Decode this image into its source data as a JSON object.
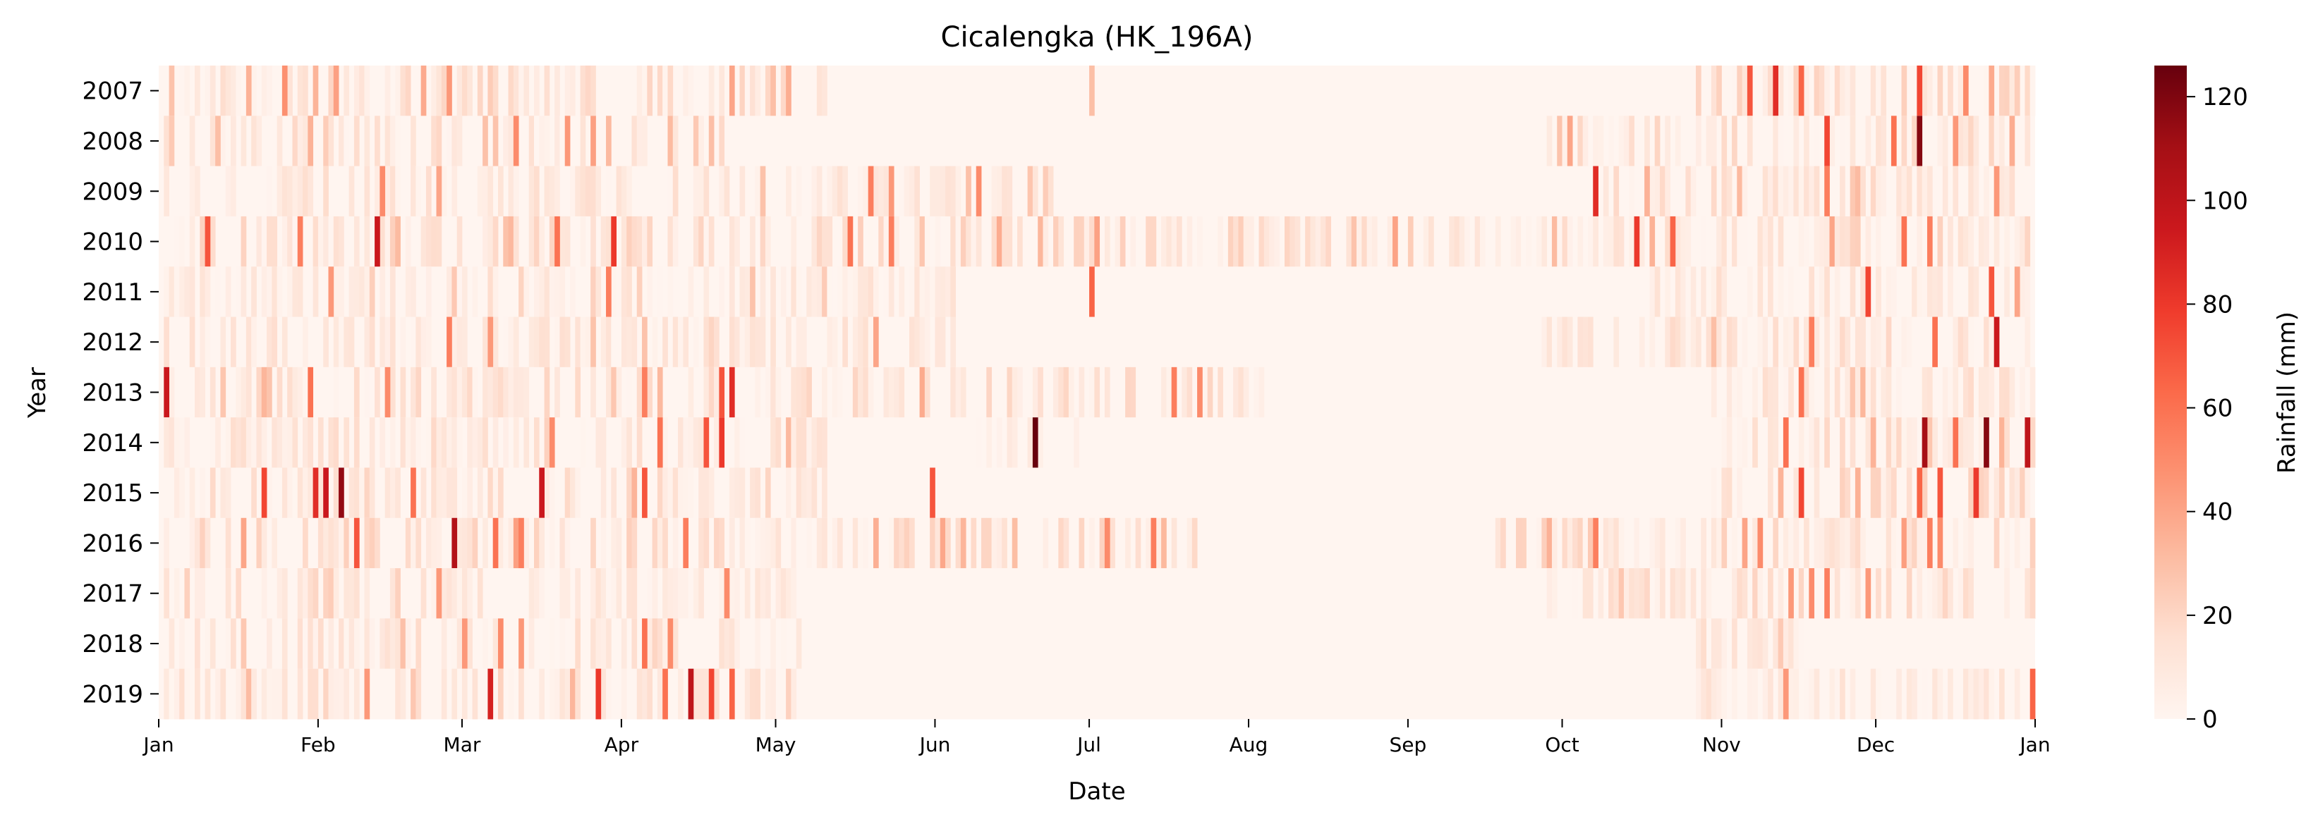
{
  "chart_data": {
    "type": "heatmap",
    "title": "Cicalengka (HK_196A)",
    "xlabel": "Date",
    "ylabel": "Year",
    "colorbar_label": "Rainfall (mm)",
    "colormap": "Reds",
    "color_stops": [
      "#fff5f0",
      "#fee0d2",
      "#fcbba1",
      "#fc9272",
      "#fb6a4a",
      "#ef3b2c",
      "#cb181d",
      "#a50f15",
      "#67000d"
    ],
    "value_range": [
      0,
      126
    ],
    "colorbar_ticks": [
      0,
      20,
      40,
      60,
      80,
      100,
      120
    ],
    "years": [
      "2007",
      "2008",
      "2009",
      "2010",
      "2011",
      "2012",
      "2013",
      "2014",
      "2015",
      "2016",
      "2017",
      "2018",
      "2019"
    ],
    "x_ticks": [
      {
        "label": "Jan",
        "day": 1
      },
      {
        "label": "Feb",
        "day": 32
      },
      {
        "label": "Mar",
        "day": 60
      },
      {
        "label": "Apr",
        "day": 91
      },
      {
        "label": "May",
        "day": 121
      },
      {
        "label": "Jun",
        "day": 152
      },
      {
        "label": "Jul",
        "day": 182
      },
      {
        "label": "Aug",
        "day": 213
      },
      {
        "label": "Sep",
        "day": 244
      },
      {
        "label": "Oct",
        "day": 274
      },
      {
        "label": "Nov",
        "day": 305
      },
      {
        "label": "Dec",
        "day": 335
      },
      {
        "label": "Jan",
        "day": 366
      }
    ],
    "x_range_days": [
      1,
      366
    ],
    "peaks": [
      {
        "year": "2007",
        "day": 18,
        "value": 35
      },
      {
        "year": "2007",
        "day": 25,
        "value": 48
      },
      {
        "year": "2007",
        "day": 35,
        "value": 42
      },
      {
        "year": "2007",
        "day": 52,
        "value": 38
      },
      {
        "year": "2007",
        "day": 57,
        "value": 45
      },
      {
        "year": "2007",
        "day": 112,
        "value": 40
      },
      {
        "year": "2007",
        "day": 120,
        "value": 30
      },
      {
        "year": "2007",
        "day": 182,
        "value": 30
      },
      {
        "year": "2007",
        "day": 310,
        "value": 70
      },
      {
        "year": "2007",
        "day": 315,
        "value": 85
      },
      {
        "year": "2007",
        "day": 320,
        "value": 65
      },
      {
        "year": "2007",
        "day": 343,
        "value": 75
      },
      {
        "year": "2007",
        "day": 352,
        "value": 50
      },
      {
        "year": "2008",
        "day": 12,
        "value": 30
      },
      {
        "year": "2008",
        "day": 30,
        "value": 35
      },
      {
        "year": "2008",
        "day": 70,
        "value": 50
      },
      {
        "year": "2008",
        "day": 80,
        "value": 45
      },
      {
        "year": "2008",
        "day": 85,
        "value": 42
      },
      {
        "year": "2008",
        "day": 275,
        "value": 40
      },
      {
        "year": "2008",
        "day": 325,
        "value": 75
      },
      {
        "year": "2008",
        "day": 338,
        "value": 60
      },
      {
        "year": "2008",
        "day": 343,
        "value": 118
      },
      {
        "year": "2008",
        "day": 350,
        "value": 45
      },
      {
        "year": "2009",
        "day": 44,
        "value": 50
      },
      {
        "year": "2009",
        "day": 55,
        "value": 40
      },
      {
        "year": "2009",
        "day": 139,
        "value": 55
      },
      {
        "year": "2009",
        "day": 143,
        "value": 45
      },
      {
        "year": "2009",
        "day": 160,
        "value": 50
      },
      {
        "year": "2009",
        "day": 280,
        "value": 85
      },
      {
        "year": "2009",
        "day": 290,
        "value": 35
      },
      {
        "year": "2009",
        "day": 325,
        "value": 55
      },
      {
        "year": "2009",
        "day": 358,
        "value": 45
      },
      {
        "year": "2010",
        "day": 10,
        "value": 70
      },
      {
        "year": "2010",
        "day": 28,
        "value": 55
      },
      {
        "year": "2010",
        "day": 43,
        "value": 95
      },
      {
        "year": "2010",
        "day": 78,
        "value": 60
      },
      {
        "year": "2010",
        "day": 89,
        "value": 80
      },
      {
        "year": "2010",
        "day": 135,
        "value": 60
      },
      {
        "year": "2010",
        "day": 143,
        "value": 55
      },
      {
        "year": "2010",
        "day": 288,
        "value": 80
      },
      {
        "year": "2010",
        "day": 295,
        "value": 65
      },
      {
        "year": "2010",
        "day": 340,
        "value": 60
      },
      {
        "year": "2010",
        "day": 345,
        "value": 55
      },
      {
        "year": "2011",
        "day": 34,
        "value": 45
      },
      {
        "year": "2011",
        "day": 88,
        "value": 55
      },
      {
        "year": "2011",
        "day": 182,
        "value": 65
      },
      {
        "year": "2011",
        "day": 333,
        "value": 75
      },
      {
        "year": "2011",
        "day": 357,
        "value": 70
      },
      {
        "year": "2011",
        "day": 362,
        "value": 40
      },
      {
        "year": "2012",
        "day": 57,
        "value": 55
      },
      {
        "year": "2012",
        "day": 65,
        "value": 45
      },
      {
        "year": "2012",
        "day": 140,
        "value": 40
      },
      {
        "year": "2012",
        "day": 322,
        "value": 55
      },
      {
        "year": "2012",
        "day": 346,
        "value": 60
      },
      {
        "year": "2012",
        "day": 358,
        "value": 95
      },
      {
        "year": "2013",
        "day": 2,
        "value": 95
      },
      {
        "year": "2013",
        "day": 30,
        "value": 60
      },
      {
        "year": "2013",
        "day": 45,
        "value": 50
      },
      {
        "year": "2013",
        "day": 95,
        "value": 55
      },
      {
        "year": "2013",
        "day": 110,
        "value": 70
      },
      {
        "year": "2013",
        "day": 112,
        "value": 85
      },
      {
        "year": "2013",
        "day": 198,
        "value": 55
      },
      {
        "year": "2013",
        "day": 203,
        "value": 50
      },
      {
        "year": "2013",
        "day": 320,
        "value": 60
      },
      {
        "year": "2014",
        "day": 77,
        "value": 50
      },
      {
        "year": "2014",
        "day": 98,
        "value": 60
      },
      {
        "year": "2014",
        "day": 107,
        "value": 70
      },
      {
        "year": "2014",
        "day": 110,
        "value": 80
      },
      {
        "year": "2014",
        "day": 171,
        "value": 126
      },
      {
        "year": "2014",
        "day": 317,
        "value": 60
      },
      {
        "year": "2014",
        "day": 344,
        "value": 110
      },
      {
        "year": "2014",
        "day": 350,
        "value": 60
      },
      {
        "year": "2014",
        "day": 356,
        "value": 118
      },
      {
        "year": "2014",
        "day": 364,
        "value": 100
      },
      {
        "year": "2015",
        "day": 21,
        "value": 75
      },
      {
        "year": "2015",
        "day": 31,
        "value": 85
      },
      {
        "year": "2015",
        "day": 33,
        "value": 95
      },
      {
        "year": "2015",
        "day": 36,
        "value": 115
      },
      {
        "year": "2015",
        "day": 50,
        "value": 60
      },
      {
        "year": "2015",
        "day": 75,
        "value": 95
      },
      {
        "year": "2015",
        "day": 95,
        "value": 70
      },
      {
        "year": "2015",
        "day": 151,
        "value": 70
      },
      {
        "year": "2015",
        "day": 320,
        "value": 75
      },
      {
        "year": "2015",
        "day": 343,
        "value": 65
      },
      {
        "year": "2015",
        "day": 347,
        "value": 70
      },
      {
        "year": "2015",
        "day": 354,
        "value": 80
      },
      {
        "year": "2016",
        "day": 39,
        "value": 70
      },
      {
        "year": "2016",
        "day": 58,
        "value": 105
      },
      {
        "year": "2016",
        "day": 66,
        "value": 60
      },
      {
        "year": "2016",
        "day": 71,
        "value": 55
      },
      {
        "year": "2016",
        "day": 103,
        "value": 55
      },
      {
        "year": "2016",
        "day": 185,
        "value": 50
      },
      {
        "year": "2016",
        "day": 194,
        "value": 55
      },
      {
        "year": "2016",
        "day": 280,
        "value": 55
      },
      {
        "year": "2016",
        "day": 312,
        "value": 50
      },
      {
        "year": "2016",
        "day": 345,
        "value": 55
      },
      {
        "year": "2016",
        "day": 347,
        "value": 50
      },
      {
        "year": "2017",
        "day": 55,
        "value": 45
      },
      {
        "year": "2017",
        "day": 111,
        "value": 50
      },
      {
        "year": "2017",
        "day": 318,
        "value": 45
      },
      {
        "year": "2017",
        "day": 322,
        "value": 50
      },
      {
        "year": "2017",
        "day": 325,
        "value": 55
      },
      {
        "year": "2017",
        "day": 333,
        "value": 45
      },
      {
        "year": "2018",
        "day": 60,
        "value": 45
      },
      {
        "year": "2018",
        "day": 67,
        "value": 50
      },
      {
        "year": "2018",
        "day": 71,
        "value": 45
      },
      {
        "year": "2018",
        "day": 95,
        "value": 60
      },
      {
        "year": "2018",
        "day": 100,
        "value": 50
      },
      {
        "year": "2019",
        "day": 41,
        "value": 45
      },
      {
        "year": "2019",
        "day": 65,
        "value": 90
      },
      {
        "year": "2019",
        "day": 86,
        "value": 80
      },
      {
        "year": "2019",
        "day": 99,
        "value": 60
      },
      {
        "year": "2019",
        "day": 104,
        "value": 100
      },
      {
        "year": "2019",
        "day": 108,
        "value": 75
      },
      {
        "year": "2019",
        "day": 112,
        "value": 65
      },
      {
        "year": "2019",
        "day": 317,
        "value": 45
      },
      {
        "year": "2019",
        "day": 365,
        "value": 65
      }
    ],
    "active_periods": [
      {
        "year": "2007",
        "start": 1,
        "end": 130,
        "level": 16
      },
      {
        "year": "2007",
        "start": 300,
        "end": 365,
        "level": 18
      },
      {
        "year": "2008",
        "start": 1,
        "end": 110,
        "level": 15
      },
      {
        "year": "2008",
        "start": 270,
        "end": 365,
        "level": 16
      },
      {
        "year": "2009",
        "start": 1,
        "end": 175,
        "level": 14
      },
      {
        "year": "2009",
        "start": 280,
        "end": 365,
        "level": 15
      },
      {
        "year": "2010",
        "start": 1,
        "end": 365,
        "level": 18
      },
      {
        "year": "2011",
        "start": 1,
        "end": 155,
        "level": 12
      },
      {
        "year": "2011",
        "start": 290,
        "end": 365,
        "level": 14
      },
      {
        "year": "2012",
        "start": 1,
        "end": 160,
        "level": 13
      },
      {
        "year": "2012",
        "start": 270,
        "end": 365,
        "level": 15
      },
      {
        "year": "2013",
        "start": 1,
        "end": 215,
        "level": 16
      },
      {
        "year": "2013",
        "start": 300,
        "end": 365,
        "level": 14
      },
      {
        "year": "2014",
        "start": 1,
        "end": 130,
        "level": 14
      },
      {
        "year": "2014",
        "start": 160,
        "end": 180,
        "level": 12
      },
      {
        "year": "2014",
        "start": 305,
        "end": 365,
        "level": 15
      },
      {
        "year": "2015",
        "start": 1,
        "end": 130,
        "level": 16
      },
      {
        "year": "2015",
        "start": 300,
        "end": 365,
        "level": 18
      },
      {
        "year": "2016",
        "start": 1,
        "end": 205,
        "level": 18
      },
      {
        "year": "2016",
        "start": 260,
        "end": 365,
        "level": 18
      },
      {
        "year": "2017",
        "start": 1,
        "end": 125,
        "level": 12
      },
      {
        "year": "2017",
        "start": 270,
        "end": 365,
        "level": 16
      },
      {
        "year": "2018",
        "start": 1,
        "end": 125,
        "level": 14
      },
      {
        "year": "2018",
        "start": 300,
        "end": 320,
        "level": 12
      },
      {
        "year": "2019",
        "start": 1,
        "end": 125,
        "level": 14
      },
      {
        "year": "2019",
        "start": 300,
        "end": 365,
        "level": 12
      }
    ]
  }
}
